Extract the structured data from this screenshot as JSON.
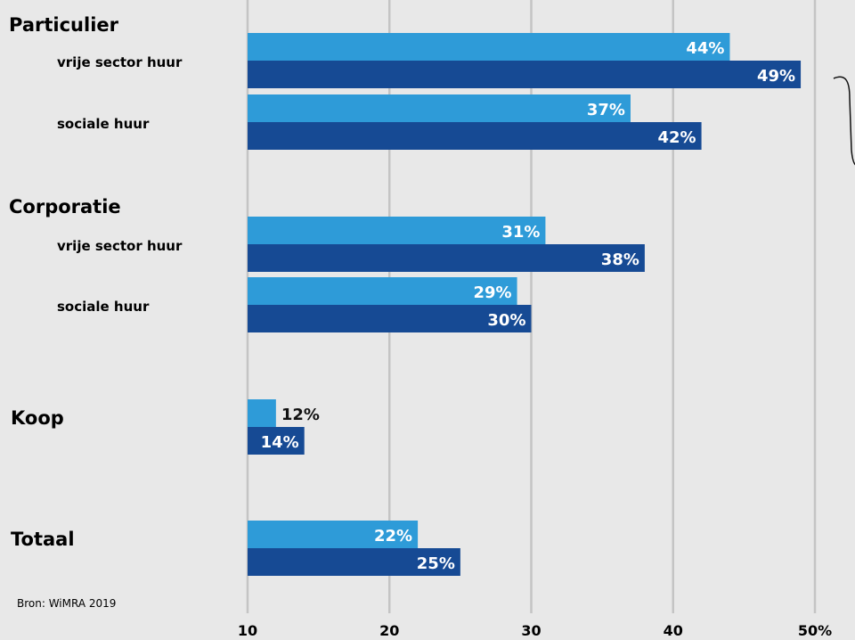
{
  "chart_data": {
    "type": "bar",
    "orientation": "horizontal",
    "xlim": [
      10,
      50
    ],
    "x_ticks": [
      "10",
      "20",
      "30",
      "40",
      "50%"
    ],
    "grid": true,
    "colors": [
      "#2e9bd8",
      "#164a94"
    ],
    "rows": [
      {
        "group": "Particulier",
        "label": "vrije sector huur",
        "values": [
          44,
          49
        ],
        "value_labels": [
          "44%",
          "49%"
        ]
      },
      {
        "group": "",
        "label": "sociale huur",
        "values": [
          37,
          42
        ],
        "value_labels": [
          "37%",
          "42%"
        ]
      },
      {
        "group": "Corporatie",
        "label": "vrije sector huur",
        "values": [
          31,
          38
        ],
        "value_labels": [
          "31%",
          "38%"
        ]
      },
      {
        "group": "",
        "label": "sociale huur",
        "values": [
          29,
          30
        ],
        "value_labels": [
          "29%",
          "30%"
        ]
      },
      {
        "group": "Koop",
        "label": "",
        "values": [
          12,
          14
        ],
        "value_labels": [
          "12%",
          "14%"
        ]
      },
      {
        "group": "Totaal",
        "label": "",
        "values": [
          22,
          25
        ],
        "value_labels": [
          "22%",
          "25%"
        ]
      }
    ],
    "source": "Bron: WiMRA 2019"
  }
}
